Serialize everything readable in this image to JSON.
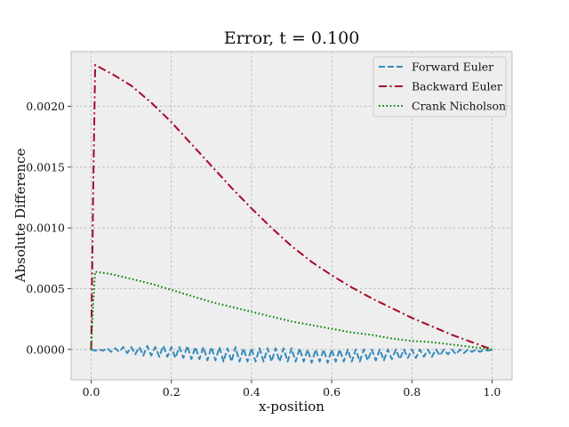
{
  "chart_data": {
    "type": "line",
    "title": "Error, t = 0.100",
    "xlabel": "x-position",
    "ylabel": "Absolute Difference",
    "xlim": [
      -0.05,
      1.05
    ],
    "ylim": [
      -0.00025,
      0.00245
    ],
    "xticks": [
      0.0,
      0.2,
      0.4,
      0.6,
      0.8,
      1.0
    ],
    "xtick_labels": [
      "0.0",
      "0.2",
      "0.4",
      "0.6",
      "0.8",
      "1.0"
    ],
    "yticks": [
      0.0,
      0.0005,
      0.001,
      0.0015,
      0.002
    ],
    "ytick_labels": [
      "0.0000",
      "0.0005",
      "0.0010",
      "0.0015",
      "0.0020"
    ],
    "grid": true,
    "legend_position": "top-right",
    "series": [
      {
        "name": "Forward Euler",
        "color": "#348abd",
        "style": "dashed",
        "x": [
          0.0,
          0.01,
          0.02,
          0.03,
          0.04,
          0.05,
          0.06,
          0.07,
          0.08,
          0.09,
          0.1,
          0.11,
          0.12,
          0.13,
          0.14,
          0.15,
          0.16,
          0.17,
          0.18,
          0.19,
          0.2,
          0.21,
          0.22,
          0.23,
          0.24,
          0.25,
          0.26,
          0.27,
          0.28,
          0.29,
          0.3,
          0.31,
          0.32,
          0.33,
          0.34,
          0.35,
          0.36,
          0.37,
          0.38,
          0.39,
          0.4,
          0.41,
          0.42,
          0.43,
          0.44,
          0.45,
          0.46,
          0.47,
          0.48,
          0.49,
          0.5,
          0.51,
          0.52,
          0.53,
          0.54,
          0.55,
          0.56,
          0.57,
          0.58,
          0.59,
          0.6,
          0.61,
          0.62,
          0.63,
          0.64,
          0.65,
          0.66,
          0.67,
          0.68,
          0.69,
          0.7,
          0.71,
          0.72,
          0.73,
          0.74,
          0.75,
          0.76,
          0.77,
          0.78,
          0.79,
          0.8,
          0.81,
          0.82,
          0.83,
          0.84,
          0.85,
          0.86,
          0.87,
          0.88,
          0.89,
          0.9,
          0.91,
          0.92,
          0.93,
          0.94,
          0.95,
          0.96,
          0.97,
          0.98,
          0.99,
          1.0
        ],
        "y": [
          0.0,
          -1e-05,
          0.0,
          -1e-05,
          1e-05,
          -2e-05,
          1e-05,
          -2e-05,
          2e-05,
          -3e-05,
          2e-05,
          -4e-05,
          2e-05,
          -5e-05,
          3e-05,
          -5e-05,
          2e-05,
          -6e-05,
          3e-05,
          -6e-05,
          2e-05,
          -7e-05,
          2e-05,
          -7e-05,
          3e-05,
          -8e-05,
          2e-05,
          -8e-05,
          2e-05,
          -9e-05,
          2e-05,
          -9e-05,
          2e-05,
          -0.0001,
          1e-05,
          -0.0001,
          2e-05,
          -0.0001,
          1e-05,
          -0.0001,
          1e-05,
          -0.0001,
          1e-05,
          -0.0001,
          1e-05,
          -0.0001,
          1e-05,
          -0.0001,
          1e-05,
          -0.0001,
          1e-05,
          -0.0001,
          1e-05,
          -0.0001,
          0.0,
          -0.00011,
          0.0,
          -0.0001,
          0.0,
          -0.00011,
          0.0,
          -0.0001,
          0.0,
          -0.0001,
          0.0,
          -0.0001,
          0.0,
          -0.0001,
          0.0,
          -9e-05,
          0.0,
          -9e-05,
          0.0,
          -9e-05,
          0.0,
          -8e-05,
          0.0,
          -8e-05,
          0.0,
          -7e-05,
          0.0,
          -7e-05,
          0.0,
          -6e-05,
          0.0,
          -6e-05,
          0.0,
          -5e-05,
          0.0,
          -4e-05,
          0.0,
          -4e-05,
          0.0,
          -3e-05,
          0.0,
          -2e-05,
          0.0,
          -2e-05,
          0.0,
          -1e-05,
          0.0
        ]
      },
      {
        "name": "Backward Euler",
        "color": "#a60628",
        "style": "dashdot",
        "x": [
          0.0,
          0.005,
          0.01,
          0.05,
          0.1,
          0.15,
          0.2,
          0.25,
          0.3,
          0.35,
          0.4,
          0.45,
          0.5,
          0.55,
          0.6,
          0.65,
          0.7,
          0.75,
          0.8,
          0.85,
          0.9,
          0.95,
          1.0
        ],
        "y": [
          0.0,
          0.0013,
          0.00234,
          0.00227,
          0.00217,
          0.00203,
          0.00187,
          0.00169,
          0.00151,
          0.00133,
          0.00116,
          0.001,
          0.00085,
          0.00072,
          0.00061,
          0.00051,
          0.00042,
          0.00034,
          0.00026,
          0.00019,
          0.00012,
          6e-05,
          0.0
        ]
      },
      {
        "name": "Crank Nicholson",
        "color": "#008000",
        "style": "dotted",
        "x": [
          0.0,
          0.005,
          0.01,
          0.05,
          0.1,
          0.15,
          0.2,
          0.25,
          0.3,
          0.35,
          0.4,
          0.45,
          0.5,
          0.55,
          0.6,
          0.65,
          0.7,
          0.75,
          0.8,
          0.85,
          0.9,
          0.95,
          1.0
        ],
        "y": [
          0.0,
          0.00038,
          0.00064,
          0.00062,
          0.00058,
          0.00054,
          0.00049,
          0.00044,
          0.00039,
          0.00035,
          0.00031,
          0.00027,
          0.00023,
          0.0002,
          0.00017,
          0.00014,
          0.00012,
          9e-05,
          7e-05,
          6e-05,
          4e-05,
          2e-05,
          0.0
        ]
      }
    ]
  }
}
